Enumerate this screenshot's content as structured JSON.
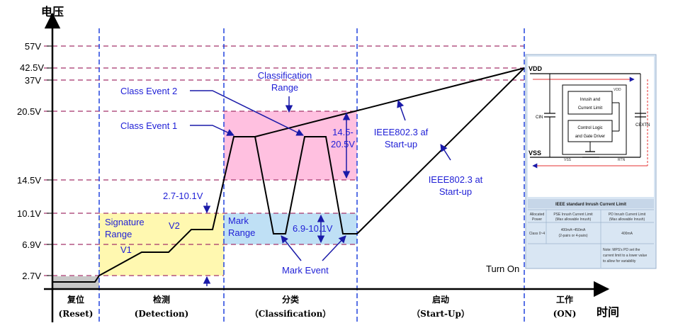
{
  "axis": {
    "y_title": "电压",
    "x_title": "时间",
    "voltage_labels": [
      "57V",
      "42.5V",
      "37V",
      "20.5V",
      "14.5V",
      "10.1V",
      "6.9V",
      "2.7V"
    ]
  },
  "phases": [
    {
      "cn": "复位",
      "en": "(Reset)"
    },
    {
      "cn": "检测",
      "en": "(Detection)"
    },
    {
      "cn": "分类",
      "en": "（Classification）"
    },
    {
      "cn": "启动",
      "en": "（Start-Up）"
    },
    {
      "cn": "工作",
      "en": "(ON)"
    }
  ],
  "annotations": {
    "classification_range_1": "Classification",
    "classification_range_2": "Range",
    "class_event_2": "Class Event 2",
    "class_event_1": "Class Event 1",
    "range_14_20_line1": "14.5-",
    "range_14_20_line2": "20.5V",
    "af_line1": "IEEE802.3 af",
    "af_line2": "Start-up",
    "at_line1": "IEEE802.3 at",
    "at_line2": "Start-up",
    "range_2_7_10_1": "2.7-10.1V",
    "signature_line1": "Signature",
    "signature_line2": "Range",
    "v1": "V1",
    "v2": "V2",
    "mark_line1": "Mark",
    "mark_line2": "Range",
    "range_6_9_10_1": "6.9-10.1V",
    "mark_event": "Mark Event",
    "turn_on": "Turn On"
  },
  "inset": {
    "vdd": "VDD",
    "vss": "VSS",
    "inrush_1": "Inrush and",
    "inrush_2": "Current Limit",
    "ctrl_1": "Control Logic",
    "ctrl_2": "and Gate Driver",
    "cin": "CIN",
    "cextn": "CEXTN",
    "pin_vdd": "VDD",
    "pin_vss": "VSS",
    "pin_rtn": "RTN",
    "table_title": "IEEE standard Inrush Current Limit",
    "col1_1": "Allocated",
    "col1_2": "Power",
    "col2_1": "PSE Inrush Current Limit",
    "col2_2": "(Max allowable Inrush)",
    "col3_1": "PD Inrush Current Limit",
    "col3_2": "(Max allowable Inrush)",
    "row_class": "Class 0~4",
    "row_pse_1": "400mA~450mA",
    "row_pse_2": "(2-pairs or 4-pairs)",
    "row_pd": "400mA",
    "note_1": "Note: MPS's PD set the",
    "note_2": "current limit to a lower value",
    "note_3": "to allow for variability"
  }
}
